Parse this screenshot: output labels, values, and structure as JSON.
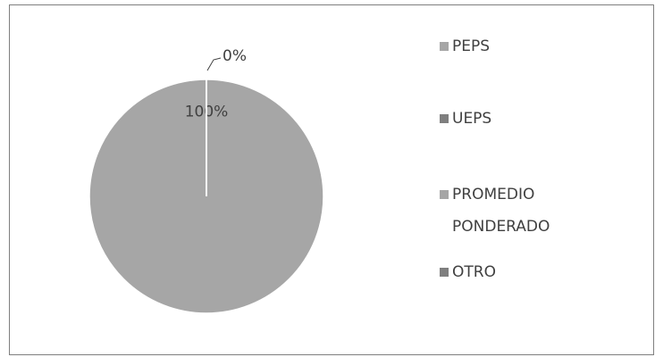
{
  "chart_data": {
    "type": "pie",
    "categories": [
      "PEPS",
      "UEPS",
      "PROMEDIO PONDERADO",
      "OTRO"
    ],
    "legend_lines": [
      [
        "PEPS"
      ],
      [
        "UEPS"
      ],
      [
        "PROMEDIO",
        "PONDERADO"
      ],
      [
        "OTRO"
      ]
    ],
    "values": [
      100,
      0,
      0,
      0
    ],
    "value_labels": [
      "100%",
      "0%",
      null,
      null
    ],
    "colors": [
      "#a6a6a6",
      "#7f7f7f",
      "#a6a6a6",
      "#7f7f7f"
    ],
    "legend": "right"
  }
}
